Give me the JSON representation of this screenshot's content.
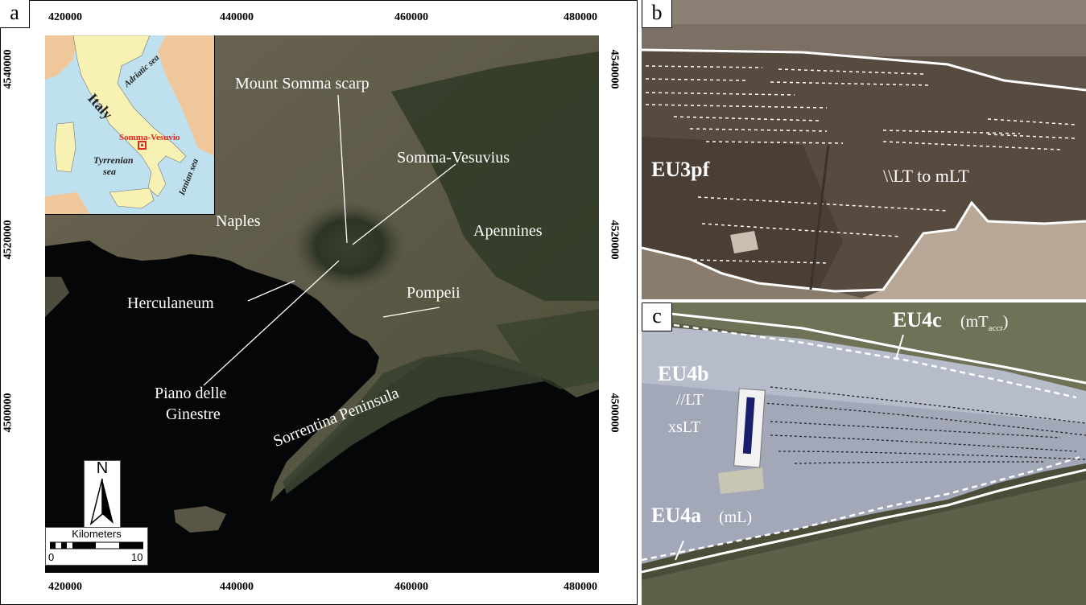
{
  "panel_a": {
    "letter": "a",
    "top_ticks": [
      "420000",
      "440000",
      "460000",
      "480000"
    ],
    "bottom_ticks": [
      "420000",
      "440000",
      "460000",
      "480000"
    ],
    "left_ticks": [
      "4540000",
      "4520000",
      "4500000"
    ],
    "right_ticks": [
      "4540000",
      "4520000",
      "4500000"
    ],
    "labels": {
      "mount_somma": "Mount Somma scarp",
      "somma_vesuvius": "Somma-Vesuvius",
      "naples": "Naples",
      "apennines": "Apennines",
      "herculaneum": "Herculaneum",
      "pompeii": "Pompeii",
      "piano_line1": "Piano delle",
      "piano_line2": "Ginestre",
      "sorrentina": "Sorrentina Peninsula"
    },
    "inset": {
      "italy": "Italy",
      "adriatic": "Adriatic sea",
      "tyrrenian_line1": "Tyrrenian",
      "tyrrenian_line2": "sea",
      "ionian": "Ionian sea",
      "somma_vesuvio": "Somma-Vesuvio"
    },
    "north": "N",
    "scale": {
      "title": "Kilometers",
      "min": "0",
      "max": "10"
    },
    "colors": {
      "sea": "#050607",
      "land": "#5c5a45",
      "marker": "#e8261c"
    }
  },
  "panel_b": {
    "letter": "b",
    "unit_label": "EU3pf",
    "facies_label": "\\\\LT to mLT"
  },
  "panel_c": {
    "letter": "c",
    "eu4c": "EU4c",
    "eu4c_facies": "(mT",
    "eu4c_sub": "accr",
    "eu4c_close": ")",
    "eu4b": "EU4b",
    "eu4b_facies1": "//LT",
    "eu4b_facies2": "xsLT",
    "eu4a": "EU4a",
    "eu4a_facies": "(mL)"
  }
}
